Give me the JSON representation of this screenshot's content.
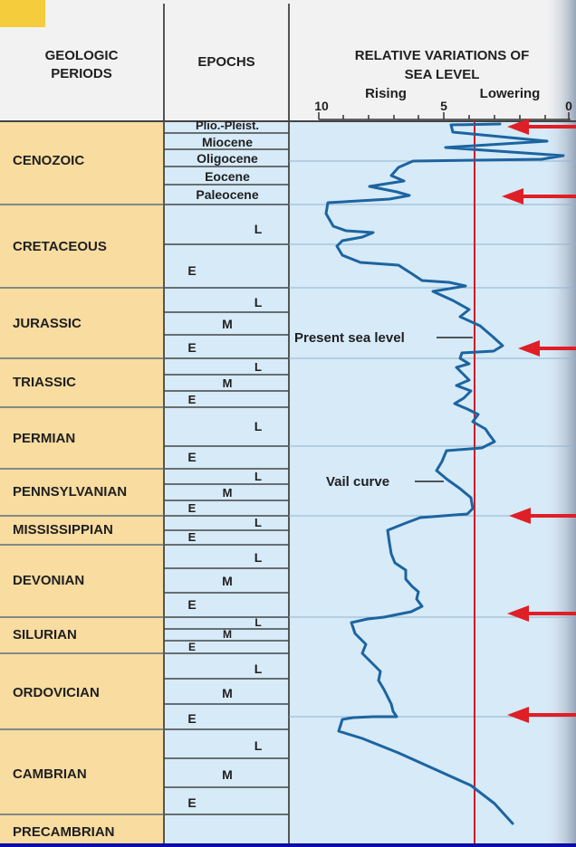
{
  "headers": {
    "periods_line1": "GEOLOGIC",
    "periods_line2": "PERIODS",
    "epochs": "EPOCHS",
    "sea_line1": "RELATIVE VARIATIONS OF",
    "sea_line2": "SEA LEVEL",
    "rising": "Rising",
    "lowering": "Lowering",
    "scale_10": "10",
    "scale_5": "5",
    "scale_0": "0"
  },
  "periods": [
    "CENOZOIC",
    "CRETACEOUS",
    "JURASSIC",
    "TRIASSIC",
    "PERMIAN",
    "PENNSYLVANIAN",
    "MISSISSIPPIAN",
    "DEVONIAN",
    "SILURIAN",
    "ORDOVICIAN",
    "CAMBRIAN",
    "PRECAMBRIAN"
  ],
  "cenozoic_epochs": [
    "Plio.-Pleist.",
    "Miocene",
    "Oligocene",
    "Eocene",
    "Paleocene"
  ],
  "epoch_letters": {
    "late": "L",
    "middle": "M",
    "early": "E"
  },
  "annotations": {
    "present_sea_level": "Present sea level",
    "vail_curve": "Vail curve"
  },
  "colors": {
    "background": "#0c0ca8",
    "period_column": "#f8dca0",
    "chart_area": "#d6eaf8",
    "header_band": "#f2f2f2",
    "curve": "#1c64a0",
    "present_level_line": "#d21a28",
    "arrows": "#e01e26"
  }
}
